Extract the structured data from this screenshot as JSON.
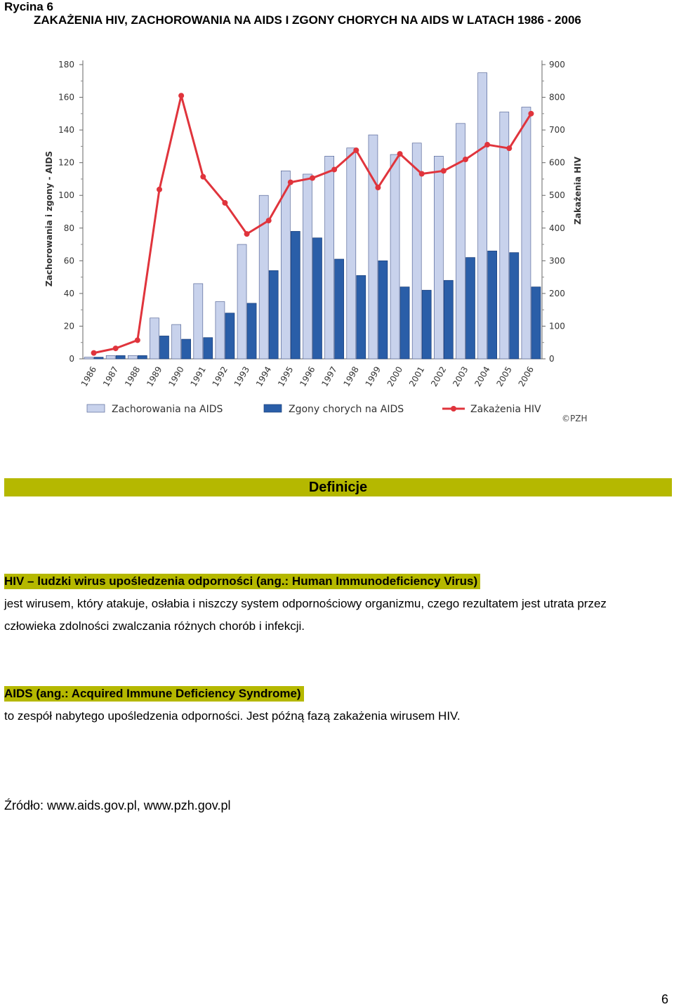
{
  "header": {
    "figure_label": "Rycina 6",
    "title": "ZAKAŻENIA HIV, ZACHOROWANIA NA AIDS I ZGONY CHORYCH NA AIDS W LATACH 1986 - 2006"
  },
  "chart_data": {
    "type": "bar",
    "categories": [
      "1986",
      "1987",
      "1988",
      "1989",
      "1990",
      "1991",
      "1992",
      "1993",
      "1994",
      "1995",
      "1996",
      "1997",
      "1998",
      "1999",
      "2000",
      "2001",
      "2002",
      "2003",
      "2004",
      "2005",
      "2006"
    ],
    "ylabel_left": "Zachorowania i zgony - AIDS",
    "ylabel_right": "Zakażenia HIV",
    "ylim_left": [
      0,
      180
    ],
    "ylim_right": [
      0,
      900
    ],
    "yticks_left": [
      0,
      20,
      40,
      60,
      80,
      100,
      120,
      140,
      160,
      180
    ],
    "yticks_right": [
      0,
      100,
      200,
      300,
      400,
      500,
      600,
      700,
      800,
      900
    ],
    "series": [
      {
        "name": "Zachorowania na AIDS",
        "kind": "bar",
        "axis": "left",
        "color": "#c8d2ec",
        "values": [
          1,
          2,
          2,
          25,
          21,
          46,
          35,
          70,
          100,
          115,
          113,
          124,
          129,
          137,
          125,
          132,
          124,
          144,
          175,
          151,
          154
        ]
      },
      {
        "name": "Zgony chorych na AIDS",
        "kind": "bar",
        "axis": "left",
        "color": "#2a5ea8",
        "values": [
          1,
          2,
          2,
          14,
          12,
          13,
          28,
          34,
          54,
          78,
          74,
          61,
          51,
          60,
          44,
          42,
          48,
          62,
          66,
          65,
          44
        ]
      },
      {
        "name": "Zakażenia HIV",
        "kind": "line",
        "axis": "right",
        "color": "#e0343c",
        "values": [
          18,
          32,
          57,
          518,
          805,
          557,
          477,
          382,
          423,
          540,
          553,
          579,
          638,
          524,
          627,
          566,
          575,
          610,
          655,
          644,
          750
        ]
      }
    ],
    "watermark": "©PZH",
    "grid": false,
    "legend_position": "bottom"
  },
  "definitions": {
    "heading": "Definicje",
    "items": [
      {
        "term": "HIV – ludzki wirus upośledzenia odporności (ang.: Human Immunodeficiency Virus)",
        "lines": [
          "jest wirusem, który atakuje, osłabia i niszczy system odpornościowy organizmu, czego rezultatem jest utrata przez",
          "człowieka zdolności zwalczania różnych chorób i infekcji."
        ]
      },
      {
        "term": "AIDS (ang.: Acquired Immune Deficiency Syndrome)",
        "lines": [
          "to zespół nabytego upośledzenia odporności. Jest późną fazą zakażenia wirusem HIV."
        ]
      }
    ]
  },
  "footer": {
    "source": "Źródło: www.aids.gov.pl, www.pzh.gov.pl",
    "page_number": "6"
  }
}
